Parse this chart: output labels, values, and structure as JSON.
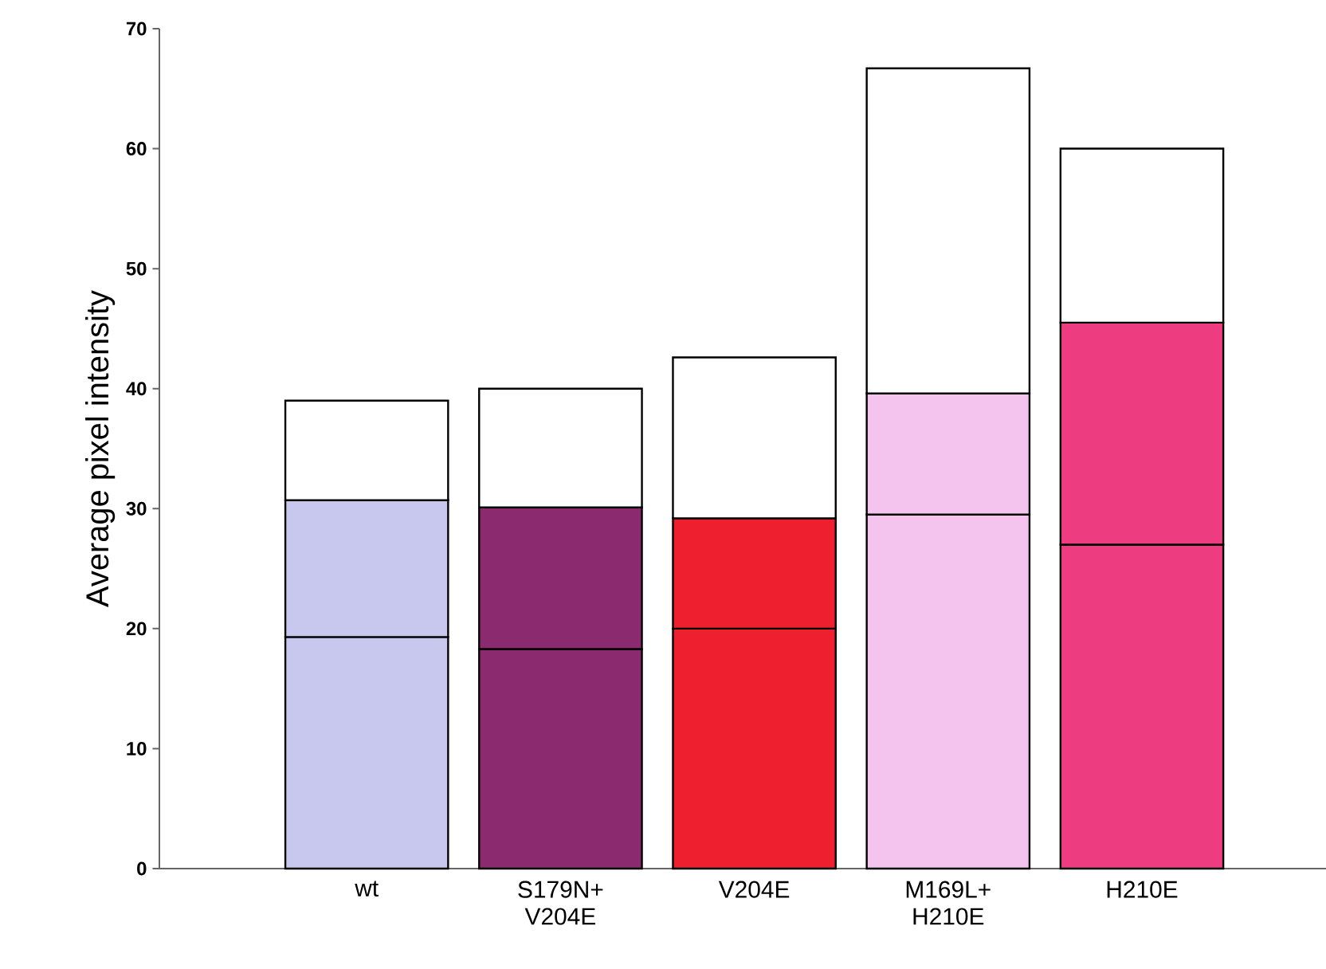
{
  "chart_data": {
    "type": "bar",
    "stacked": true,
    "ylabel": "Average pixel intensity",
    "categories": [
      "wt",
      "S179N+ V204E",
      "V204E",
      "M169L+ H210E",
      "H210E"
    ],
    "series": [
      {
        "colors": [
          "#c8c8ee",
          "#8b2a6e",
          "#ee2030",
          "#f4c4ee",
          "#ee3c80"
        ],
        "values": [
          19.3,
          18.3,
          20,
          29.5,
          27
        ]
      },
      {
        "colors": [
          "#c8c8ee",
          "#8b2a6e",
          "#ee2030",
          "#f4c4ee",
          "#ee3c80"
        ],
        "values": [
          11.4,
          11.8,
          9.2,
          10.1,
          18.5
        ]
      },
      {
        "color": "#ffffff",
        "values": [
          8.3,
          9.9,
          13.4,
          27.1,
          14.5
        ]
      }
    ],
    "ylim": [
      0,
      70
    ],
    "yticks": [
      0,
      10,
      20,
      30,
      40,
      50,
      60,
      70
    ]
  }
}
